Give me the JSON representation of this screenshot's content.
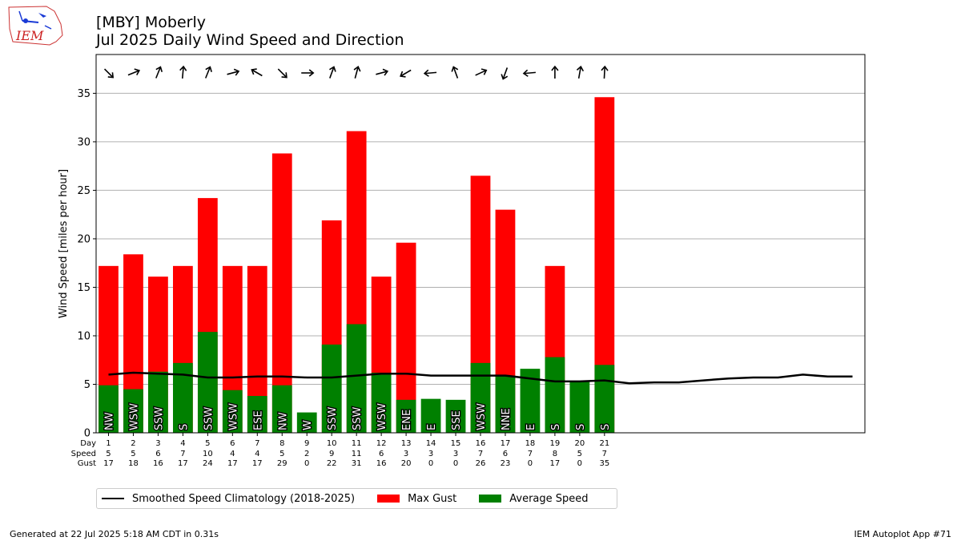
{
  "header": {
    "logo_text": "IEM",
    "title_line1": "[MBY] Moberly",
    "title_line2": "Jul 2025 Daily Wind Speed and Direction"
  },
  "footer": {
    "generated": "Generated at 22 Jul 2025 5:18 AM CDT in 0.31s",
    "app": "IEM Autoplot App #71"
  },
  "legend": {
    "items": [
      {
        "label": "Smoothed Speed Climatology (2018-2025)",
        "swatch": "line",
        "color": "#000000"
      },
      {
        "label": "Max Gust",
        "swatch": "box",
        "color": "#ff0000"
      },
      {
        "label": "Average Speed",
        "swatch": "box",
        "color": "#008000"
      }
    ]
  },
  "chart_data": {
    "type": "bar",
    "ylabel": "Wind Speed [miles per hour]",
    "ylim": [
      0,
      39
    ],
    "yticks": [
      0,
      5,
      10,
      15,
      20,
      25,
      30,
      35
    ],
    "xlim": [
      0.5,
      31.5
    ],
    "grid": "horizontal",
    "row_labels": [
      "Day",
      "Speed",
      "Gust"
    ],
    "colors": {
      "gust": "#ff0000",
      "avg": "#008000",
      "climo": "#000000"
    },
    "days": [
      {
        "day": 1,
        "speed": 5,
        "gust": 17,
        "avg": 4.9,
        "max_gust": 17.2,
        "dir": "NW",
        "arrow_deg": 135
      },
      {
        "day": 2,
        "speed": 5,
        "gust": 18,
        "avg": 4.5,
        "max_gust": 18.4,
        "dir": "WSW",
        "arrow_deg": 68
      },
      {
        "day": 3,
        "speed": 6,
        "gust": 16,
        "avg": 6.3,
        "max_gust": 16.1,
        "dir": "SSW",
        "arrow_deg": 22
      },
      {
        "day": 4,
        "speed": 7,
        "gust": 17,
        "avg": 7.2,
        "max_gust": 17.2,
        "dir": "S",
        "arrow_deg": 5
      },
      {
        "day": 5,
        "speed": 10,
        "gust": 24,
        "avg": 10.4,
        "max_gust": 24.2,
        "dir": "SSW",
        "arrow_deg": 22
      },
      {
        "day": 6,
        "speed": 4,
        "gust": 17,
        "avg": 4.4,
        "max_gust": 17.2,
        "dir": "WSW",
        "arrow_deg": 75
      },
      {
        "day": 7,
        "speed": 4,
        "gust": 17,
        "avg": 3.8,
        "max_gust": 17.2,
        "dir": "ESE",
        "arrow_deg": -60
      },
      {
        "day": 8,
        "speed": 5,
        "gust": 29,
        "avg": 4.9,
        "max_gust": 28.8,
        "dir": "NW",
        "arrow_deg": 135
      },
      {
        "day": 9,
        "speed": 2,
        "gust": 0,
        "avg": 2.1,
        "max_gust": 0,
        "dir": "W",
        "arrow_deg": 90
      },
      {
        "day": 10,
        "speed": 9,
        "gust": 22,
        "avg": 9.1,
        "max_gust": 21.9,
        "dir": "SSW",
        "arrow_deg": 20
      },
      {
        "day": 11,
        "speed": 11,
        "gust": 31,
        "avg": 11.2,
        "max_gust": 31.1,
        "dir": "SSW",
        "arrow_deg": 15
      },
      {
        "day": 12,
        "speed": 6,
        "gust": 16,
        "avg": 6.2,
        "max_gust": 16.1,
        "dir": "WSW",
        "arrow_deg": 75
      },
      {
        "day": 13,
        "speed": 3,
        "gust": 20,
        "avg": 3.4,
        "max_gust": 19.6,
        "dir": "ENE",
        "arrow_deg": -120
      },
      {
        "day": 14,
        "speed": 3,
        "gust": 0,
        "avg": 3.5,
        "max_gust": 0,
        "dir": "E",
        "arrow_deg": -95
      },
      {
        "day": 15,
        "speed": 3,
        "gust": 0,
        "avg": 3.4,
        "max_gust": 0,
        "dir": "SSE",
        "arrow_deg": -20
      },
      {
        "day": 16,
        "speed": 7,
        "gust": 26,
        "avg": 7.2,
        "max_gust": 26.5,
        "dir": "WSW",
        "arrow_deg": 65
      },
      {
        "day": 17,
        "speed": 6,
        "gust": 23,
        "avg": 5.9,
        "max_gust": 23.0,
        "dir": "NNE",
        "arrow_deg": -160
      },
      {
        "day": 18,
        "speed": 7,
        "gust": 0,
        "avg": 6.6,
        "max_gust": 0,
        "dir": "E",
        "arrow_deg": -95
      },
      {
        "day": 19,
        "speed": 8,
        "gust": 17,
        "avg": 7.8,
        "max_gust": 17.2,
        "dir": "S",
        "arrow_deg": 0
      },
      {
        "day": 20,
        "speed": 5,
        "gust": 0,
        "avg": 5.3,
        "max_gust": 0,
        "dir": "S",
        "arrow_deg": 10
      },
      {
        "day": 21,
        "speed": 7,
        "gust": 35,
        "avg": 7.0,
        "max_gust": 34.6,
        "dir": "S",
        "arrow_deg": 3
      }
    ],
    "climatology": {
      "name": "Smoothed Speed Climatology (2018-2025)",
      "x": [
        1,
        2,
        3,
        4,
        5,
        6,
        7,
        8,
        9,
        10,
        11,
        12,
        13,
        14,
        15,
        16,
        17,
        18,
        19,
        20,
        21,
        22,
        23,
        24,
        25,
        26,
        27,
        28,
        29,
        30,
        31
      ],
      "y": [
        6.0,
        6.2,
        6.1,
        6.0,
        5.7,
        5.7,
        5.8,
        5.8,
        5.7,
        5.7,
        5.9,
        6.1,
        6.1,
        5.9,
        5.9,
        5.9,
        5.9,
        5.6,
        5.3,
        5.3,
        5.4,
        5.1,
        5.2,
        5.2,
        5.4,
        5.6,
        5.7,
        5.7,
        6.0,
        5.8,
        5.8
      ]
    }
  }
}
